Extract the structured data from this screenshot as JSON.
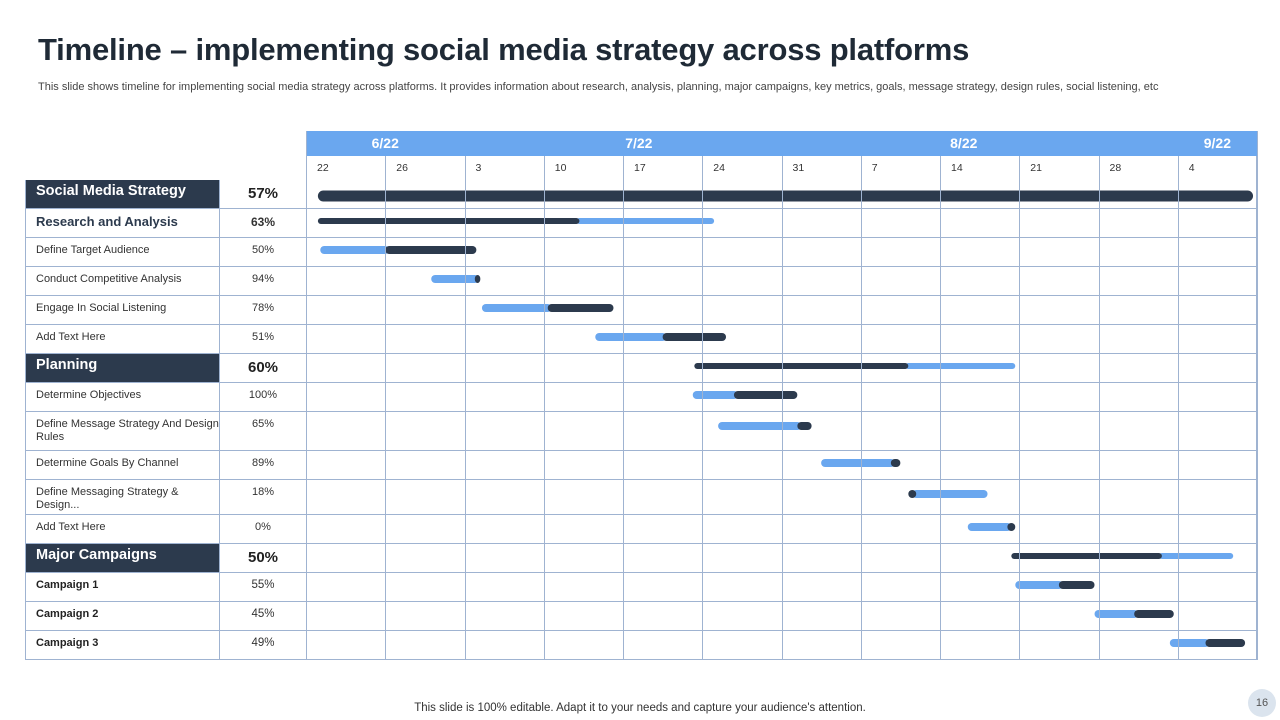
{
  "title": "Timeline – implementing social media strategy across platforms",
  "subtitle": "This slide shows timeline for implementing social media strategy across platforms. It provides information about research, analysis, planning, major campaigns, key metrics, goals, message strategy, design rules, social listening, etc",
  "footer": "This slide is 100% editable. Adapt it to your needs and capture your audience's attention.",
  "page_number": "16",
  "colors": {
    "done": "#2c3a4d",
    "remaining": "#6aa7ef",
    "header": "#6aa7ef",
    "section_bg": "#2c3a4d"
  },
  "chart_data": {
    "type": "gantt",
    "x_unit": "week columns (0 = week of 6/22 … 12 = end of week of 9/4)",
    "xlim": [
      0,
      12
    ],
    "months": [
      {
        "label": "6/22",
        "center_week": 1.0
      },
      {
        "label": "7/22",
        "center_week": 4.2
      },
      {
        "label": "8/22",
        "center_week": 8.3
      },
      {
        "label": "9/22",
        "center_week": 11.5
      }
    ],
    "weeks": [
      "22",
      "26",
      "3",
      "10",
      "17",
      "24",
      "31",
      "7",
      "14",
      "21",
      "28",
      "4"
    ],
    "rows": [
      {
        "name": "Social Media Strategy",
        "pct": "57%",
        "kind": "section",
        "start": 0.15,
        "end": 11.95,
        "dark_until": 11.95,
        "dark_first": true
      },
      {
        "name": "Research and Analysis",
        "pct": "63%",
        "kind": "sub",
        "start": 0.15,
        "end": 5.15,
        "dark_until": 3.45,
        "dark_first": true
      },
      {
        "name": "Define Target Audience",
        "pct": "50%",
        "kind": "task",
        "start": 0.18,
        "end": 2.15,
        "dark_until": 1.0,
        "dark_first": false
      },
      {
        "name": "Conduct Competitive Analysis",
        "pct": "94%",
        "kind": "task",
        "start": 1.58,
        "end": 2.2,
        "dark_until": 2.13,
        "dark_first": false
      },
      {
        "name": "Engage In Social Listening",
        "pct": "78%",
        "kind": "task",
        "start": 2.22,
        "end": 3.88,
        "dark_until": 3.05,
        "dark_first": false
      },
      {
        "name": "Add Text Here",
        "pct": "51%",
        "kind": "task",
        "start": 3.65,
        "end": 5.3,
        "dark_until": 4.5,
        "dark_first": false
      },
      {
        "name": "Planning",
        "pct": "60%",
        "kind": "section",
        "start": 4.9,
        "end": 8.95,
        "dark_until": 7.6,
        "dark_first": true
      },
      {
        "name": "Determine Objectives",
        "pct": "100%",
        "kind": "task",
        "start": 4.88,
        "end": 6.2,
        "dark_until": 5.4,
        "dark_first": false
      },
      {
        "name": "Define Message Strategy And Design Rules",
        "pct": "65%",
        "kind": "task",
        "start": 5.2,
        "end": 6.38,
        "dark_until": 6.2,
        "dark_first": false
      },
      {
        "name": "Determine Goals By Channel",
        "pct": "89%",
        "kind": "task",
        "start": 6.5,
        "end": 7.5,
        "dark_until": 7.38,
        "dark_first": false
      },
      {
        "name": "Define Messaging Strategy & Design...",
        "pct": "18%",
        "kind": "task",
        "start": 7.6,
        "end": 8.6,
        "dark_until": 7.7,
        "dark_first": true
      },
      {
        "name": "Add Text  Here",
        "pct": "0%",
        "kind": "task",
        "start": 8.35,
        "end": 8.95,
        "dark_until": 8.85,
        "dark_first": false
      },
      {
        "name": "Major Campaigns",
        "pct": "50%",
        "kind": "section",
        "start": 8.9,
        "end": 11.7,
        "dark_until": 10.8,
        "dark_first": true
      },
      {
        "name": "Campaign 1",
        "pct": "55%",
        "kind": "campaign",
        "start": 8.95,
        "end": 9.95,
        "dark_until": 9.5,
        "dark_first": false
      },
      {
        "name": "Campaign 2",
        "pct": "45%",
        "kind": "campaign",
        "start": 9.95,
        "end": 10.95,
        "dark_until": 10.45,
        "dark_first": false
      },
      {
        "name": "Campaign 3",
        "pct": "49%",
        "kind": "campaign",
        "start": 10.9,
        "end": 11.85,
        "dark_until": 11.35,
        "dark_first": false
      }
    ]
  }
}
